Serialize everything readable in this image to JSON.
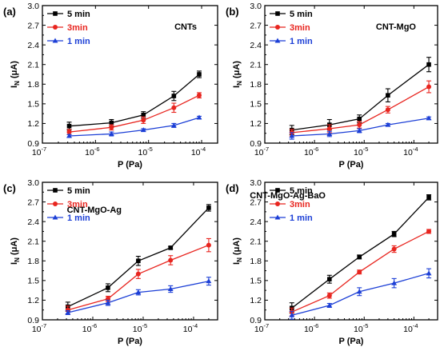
{
  "chart_data": [
    {
      "type": "line",
      "panel": "(a)",
      "title": "CNTs",
      "xlabel": "P (Pa)",
      "ylabel_main": "I",
      "ylabel_sub": "N",
      "ylabel_unit": " (μA)",
      "xscale": "log",
      "xlim": [
        1e-07,
        0.0002
      ],
      "ylim": [
        0.9,
        3.0
      ],
      "yticks": [
        "0.9",
        "1.2",
        "1.5",
        "1.8",
        "2.1",
        "2.4",
        "2.7",
        "3.0"
      ],
      "xticks": [
        {
          "base": "10",
          "exp": "-7"
        },
        {
          "base": "10",
          "exp": "-6"
        },
        {
          "base": "10",
          "exp": "-5"
        },
        {
          "base": "10",
          "exp": "-4"
        }
      ],
      "legend_position": "top-left",
      "x": [
        3.2e-07,
        2e-06,
        8e-06,
        3e-05,
        9e-05
      ],
      "series": [
        {
          "name": "5 min",
          "color": "#000000",
          "marker": "square",
          "values": [
            1.16,
            1.21,
            1.33,
            1.62,
            1.95
          ],
          "err": [
            0.06,
            0.05,
            0.05,
            0.07,
            0.05
          ]
        },
        {
          "name": "3min",
          "color": "#e8251f",
          "marker": "circle",
          "values": [
            1.07,
            1.14,
            1.25,
            1.44,
            1.63
          ],
          "err": [
            0.04,
            0.04,
            0.05,
            0.07,
            0.04
          ]
        },
        {
          "name": "1 min",
          "color": "#1c3fd6",
          "marker": "triangle",
          "values": [
            1.01,
            1.04,
            1.1,
            1.17,
            1.29
          ],
          "err": [
            0.02,
            0.03,
            0.02,
            0.03,
            0.02
          ]
        }
      ]
    },
    {
      "type": "line",
      "panel": "(b)",
      "title": "CNT-MgO",
      "xlabel": "P (Pa)",
      "ylabel_main": "I",
      "ylabel_sub": "N",
      "ylabel_unit": " (μA)",
      "xscale": "log",
      "xlim": [
        1e-07,
        0.0003
      ],
      "ylim": [
        0.9,
        3.0
      ],
      "yticks": [
        "0.9",
        "1.2",
        "1.5",
        "1.8",
        "2.1",
        "2.4",
        "2.7",
        "3.0"
      ],
      "xticks": [
        {
          "base": "10",
          "exp": "-7"
        },
        {
          "base": "10",
          "exp": "-6"
        },
        {
          "base": "10",
          "exp": "-5"
        },
        {
          "base": "10",
          "exp": "-4"
        }
      ],
      "legend_position": "top-left",
      "x": [
        3.5e-07,
        2e-06,
        8e-06,
        3e-05,
        0.0002
      ],
      "series": [
        {
          "name": "5 min",
          "color": "#000000",
          "marker": "square",
          "values": [
            1.1,
            1.18,
            1.27,
            1.63,
            2.1
          ],
          "err": [
            0.07,
            0.08,
            0.06,
            0.1,
            0.11
          ]
        },
        {
          "name": "3min",
          "color": "#e8251f",
          "marker": "circle",
          "values": [
            1.06,
            1.12,
            1.18,
            1.41,
            1.76
          ],
          "err": [
            0.05,
            0.06,
            0.05,
            0.05,
            0.09
          ]
        },
        {
          "name": "1 min",
          "color": "#1c3fd6",
          "marker": "triangle",
          "values": [
            1.01,
            1.04,
            1.09,
            1.18,
            1.28
          ],
          "err": [
            0.05,
            0.04,
            0.03,
            0.02,
            0.02
          ]
        }
      ]
    },
    {
      "type": "line",
      "panel": "(c)",
      "title": "CNT-MgO-Ag",
      "xlabel": "P (Pa)",
      "ylabel_main": "I",
      "ylabel_sub": "N",
      "ylabel_unit": " (μA)",
      "xscale": "log",
      "xlim": [
        1e-07,
        0.0003
      ],
      "ylim": [
        0.9,
        3.0
      ],
      "yticks": [
        "0.9",
        "1.2",
        "1.5",
        "1.8",
        "2.1",
        "2.4",
        "2.7",
        "3.0"
      ],
      "xticks": [
        {
          "base": "10",
          "exp": "-7"
        },
        {
          "base": "10",
          "exp": "-6"
        },
        {
          "base": "10",
          "exp": "-5"
        },
        {
          "base": "10",
          "exp": "-4"
        }
      ],
      "legend_position": "top-left",
      "x": [
        3.2e-07,
        2e-06,
        8e-06,
        3.5e-05,
        0.0002
      ],
      "series": [
        {
          "name": "5 min",
          "color": "#000000",
          "marker": "square",
          "values": [
            1.1,
            1.39,
            1.8,
            2.0,
            2.61
          ],
          "err": [
            0.07,
            0.06,
            0.07,
            0.02,
            0.05
          ]
        },
        {
          "name": "3min",
          "color": "#e8251f",
          "marker": "circle",
          "values": [
            1.05,
            1.22,
            1.6,
            1.81,
            2.04
          ],
          "err": [
            0.06,
            0.04,
            0.07,
            0.07,
            0.1
          ]
        },
        {
          "name": "1 min",
          "color": "#1c3fd6",
          "marker": "triangle",
          "values": [
            1.01,
            1.16,
            1.32,
            1.37,
            1.49
          ],
          "err": [
            0.03,
            0.04,
            0.04,
            0.05,
            0.06
          ]
        }
      ]
    },
    {
      "type": "line",
      "panel": "(d)",
      "title": "CNT-MgO-Ag-BaO",
      "xlabel": "P (Pa)",
      "ylabel_main": "I",
      "ylabel_sub": "N",
      "ylabel_unit": " (μA)",
      "xscale": "log",
      "xlim": [
        1e-07,
        0.0003
      ],
      "ylim": [
        0.9,
        3.0
      ],
      "yticks": [
        "0.9",
        "1.2",
        "1.5",
        "1.8",
        "2.1",
        "2.4",
        "2.7",
        "3.0"
      ],
      "xticks": [
        {
          "base": "10",
          "exp": "-7"
        },
        {
          "base": "10",
          "exp": "-6"
        },
        {
          "base": "10",
          "exp": "-5"
        },
        {
          "base": "10",
          "exp": "-4"
        }
      ],
      "legend_position": "top-left",
      "x": [
        3.5e-07,
        2e-06,
        8e-06,
        4e-05,
        0.0002
      ],
      "series": [
        {
          "name": "5 min",
          "color": "#000000",
          "marker": "square",
          "values": [
            1.08,
            1.52,
            1.86,
            2.21,
            2.77
          ],
          "err": [
            0.08,
            0.06,
            0.03,
            0.04,
            0.04
          ]
        },
        {
          "name": "3min",
          "color": "#e8251f",
          "marker": "circle",
          "values": [
            1.02,
            1.27,
            1.63,
            1.98,
            2.25
          ],
          "err": [
            0.06,
            0.04,
            0.03,
            0.05,
            0.03
          ]
        },
        {
          "name": "1 min",
          "color": "#1c3fd6",
          "marker": "triangle",
          "values": [
            0.97,
            1.12,
            1.33,
            1.46,
            1.61
          ],
          "err": [
            0.06,
            0.03,
            0.06,
            0.07,
            0.07
          ]
        }
      ]
    }
  ]
}
